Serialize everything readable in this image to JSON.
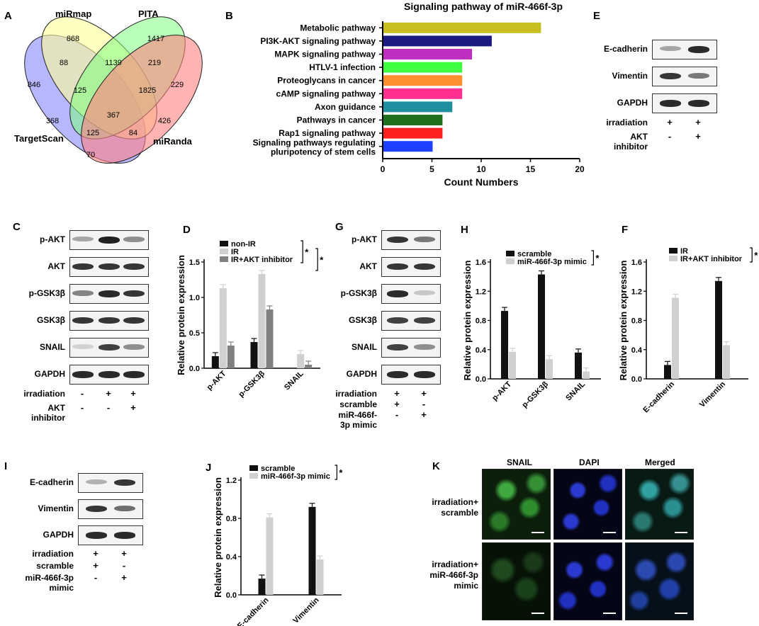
{
  "panels": {
    "A": "A",
    "B": "B",
    "C": "C",
    "D": "D",
    "E": "E",
    "F": "F",
    "G": "G",
    "H": "H",
    "I": "I",
    "J": "J",
    "K": "K"
  },
  "venn": {
    "sets": [
      "miRmap",
      "PITA",
      "TargetScan",
      "miRanda"
    ],
    "regions": {
      "ts_only": "846",
      "mirmap_only": "868",
      "pita_only": "1417",
      "miranda_only": "229",
      "ts_mirmap": "88",
      "mirmap_pita": "1139",
      "pita_miranda": "219",
      "ts_mirmap_pita": "125",
      "mirmap_pita_miranda": "1825",
      "ts_mirmap_miranda": "368",
      "ts_pita_miranda": "426",
      "all": "367",
      "ts_miranda_mid": "125",
      "mirmap_miranda": "84",
      "ts_miranda": "70"
    },
    "colors": [
      "#9999ff",
      "#ffff99",
      "#80ff80",
      "#ff8080"
    ]
  },
  "pathway": {
    "title": "Signaling pathway of miR-466f-3p",
    "xlabel": "Count Numbers",
    "ticks": [
      "0",
      "5",
      "10",
      "15",
      "20"
    ],
    "chart_data": {
      "type": "bar",
      "categories": [
        "Metabolic pathway",
        "PI3K-AKT signaling pathway",
        "MAPK signaling pathway",
        "HTLV-1 infection",
        "Proteoglycans in cancer",
        "cAMP signaling pathway",
        "Axon guidance",
        "Pathways in cancer",
        "Rap1 signaling pathway",
        "Signaling pathways regulating pluripotency of stem cells"
      ],
      "values": [
        16,
        11,
        9,
        8,
        8,
        8,
        7,
        6,
        6,
        5
      ],
      "colors": [
        "#c8c020",
        "#1a1a80",
        "#c030c0",
        "#40ff40",
        "#ff9030",
        "#ff3090",
        "#2090a0",
        "#207020",
        "#ff2020",
        "#2040ff"
      ],
      "xlim": [
        0,
        20
      ]
    }
  },
  "blots": {
    "E": {
      "rows": [
        "E-cadherin",
        "Vimentin",
        "GAPDH"
      ],
      "conditions": [
        {
          "name": "irradiation",
          "marks": [
            "+",
            "+"
          ]
        },
        {
          "name": "AKT inhibitor",
          "marks": [
            "-",
            "+"
          ]
        }
      ]
    },
    "C": {
      "rows": [
        "p-AKT",
        "AKT",
        "p-GSK3β",
        "GSK3β",
        "SNAIL",
        "GAPDH"
      ],
      "conditions": [
        {
          "name": "irradiation",
          "marks": [
            "-",
            "+",
            "+"
          ]
        },
        {
          "name": "AKT inhibitor",
          "marks": [
            "-",
            "-",
            "+"
          ]
        }
      ]
    },
    "G": {
      "rows": [
        "p-AKT",
        "AKT",
        "p-GSK3β",
        "GSK3β",
        "SNAIL",
        "GAPDH"
      ],
      "conditions": [
        {
          "name": "irradiation",
          "marks": [
            "+",
            "+"
          ]
        },
        {
          "name": "scramble",
          "marks": [
            "+",
            "-"
          ]
        },
        {
          "name": "miR-466f-3p mimic",
          "marks": [
            "-",
            "+"
          ]
        }
      ]
    },
    "I": {
      "rows": [
        "E-cadherin",
        "Vimentin",
        "GAPDH"
      ],
      "conditions": [
        {
          "name": "irradiation",
          "marks": [
            "+",
            "+"
          ]
        },
        {
          "name": "scramble",
          "marks": [
            "+",
            "-"
          ]
        },
        {
          "name": "miR-466f-3p mimic",
          "marks": [
            "-",
            "+"
          ]
        }
      ]
    }
  },
  "charts": {
    "D": {
      "ylabel": "Relative protein expression",
      "ticks": [
        "0.0",
        "0.5",
        "1.0",
        "1.5"
      ],
      "star": "*",
      "chart_data": {
        "type": "bar",
        "categories": [
          "p-AKT",
          "p-GSK3β",
          "SNAIL"
        ],
        "series": [
          {
            "name": "non-IR",
            "values": [
              0.17,
              0.37,
              null
            ],
            "color": "#111111"
          },
          {
            "name": "IR",
            "values": [
              1.13,
              1.33,
              0.2
            ],
            "color": "#d0d0d0"
          },
          {
            "name": "IR+AKT inhibitor",
            "values": [
              0.32,
              0.83,
              0.05
            ],
            "color": "#808080"
          }
        ],
        "ylim": [
          0,
          1.5
        ]
      }
    },
    "H": {
      "ylabel": "Relative protein expression",
      "ticks": [
        "0.0",
        "0.4",
        "0.8",
        "1.2",
        "1.6"
      ],
      "star": "*",
      "chart_data": {
        "type": "bar",
        "categories": [
          "p-AKT",
          "p-GSK3β",
          "SNAIL"
        ],
        "series": [
          {
            "name": "scramble",
            "values": [
              0.93,
              1.43,
              0.36
            ],
            "color": "#111111"
          },
          {
            "name": "miR-466f-3p mimic",
            "values": [
              0.37,
              0.27,
              0.1
            ],
            "color": "#d0d0d0"
          }
        ],
        "ylim": [
          0,
          1.6
        ]
      }
    },
    "F": {
      "ylabel": "Relative protein expression",
      "ticks": [
        "0.0",
        "0.4",
        "0.8",
        "1.2",
        "1.6"
      ],
      "star": "*",
      "chart_data": {
        "type": "bar",
        "categories": [
          "E-cadherin",
          "Vimentin"
        ],
        "series": [
          {
            "name": "IR",
            "values": [
              0.19,
              1.34
            ],
            "color": "#111111"
          },
          {
            "name": "IR+AKT inhibitor",
            "values": [
              1.11,
              0.46
            ],
            "color": "#d0d0d0"
          }
        ],
        "ylim": [
          0,
          1.6
        ]
      }
    },
    "J": {
      "ylabel": "Relative protein expression",
      "ticks": [
        "0.0",
        "0.4",
        "0.8",
        "1.2"
      ],
      "star": "*",
      "chart_data": {
        "type": "bar",
        "categories": [
          "E-cadherin",
          "Vimentin"
        ],
        "series": [
          {
            "name": "scramble",
            "values": [
              0.17,
              0.92
            ],
            "color": "#111111"
          },
          {
            "name": "miR-466f-3p mimic",
            "values": [
              0.81,
              0.37
            ],
            "color": "#d0d0d0"
          }
        ],
        "ylim": [
          0,
          1.2
        ]
      }
    }
  },
  "microscopy": {
    "columns": [
      "SNAIL",
      "DAPI",
      "Merged"
    ],
    "rows": [
      "irradiation+ scramble",
      "irradiation+ miR-466f-3p mimic"
    ]
  }
}
